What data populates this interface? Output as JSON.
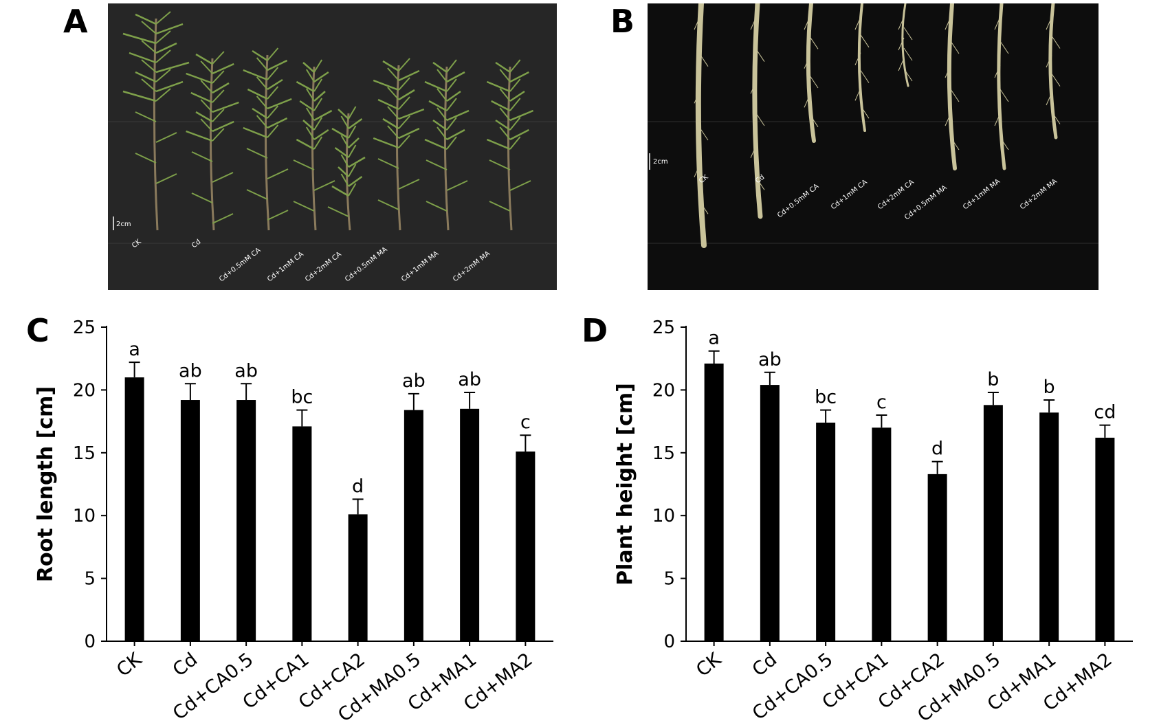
{
  "panels": {
    "a": {
      "letter": "A",
      "scale_bar": "2cm",
      "labels": [
        "CK",
        "Cd",
        "Cd+0.5mM CA",
        "Cd+1mM CA",
        "Cd+2mM CA",
        "Cd+0.5mM MA",
        "Cd+1mM MA",
        "Cd+2mM MA"
      ],
      "background": "#262626"
    },
    "b": {
      "letter": "B",
      "scale_bar": "2cm",
      "labels": [
        "CK",
        "Cd",
        "Cd+0.5mM CA",
        "Cd+1mM CA",
        "Cd+2mM CA",
        "Cd+0.5mM MA",
        "Cd+1mM MA",
        "Cd+2mM MA"
      ],
      "background": "#0d0d0d"
    },
    "c": {
      "letter": "C"
    },
    "d": {
      "letter": "D"
    }
  },
  "colors": {
    "bar": "#000000",
    "shoot": "#7ea04a",
    "stem": "#8a7a5c",
    "root": "#c9c39a"
  },
  "chart_data": [
    {
      "type": "bar",
      "categories": [
        "CK",
        "Cd",
        "Cd+CA0.5",
        "Cd+CA1",
        "Cd+CA2",
        "Cd+MA0.5",
        "Cd+MA1",
        "Cd+MA2"
      ],
      "values": [
        21.0,
        19.2,
        19.2,
        17.1,
        10.1,
        18.4,
        18.5,
        15.1
      ],
      "errors": [
        1.2,
        1.3,
        1.3,
        1.3,
        1.2,
        1.3,
        1.3,
        1.3
      ],
      "significance": [
        "a",
        "ab",
        "ab",
        "bc",
        "d",
        "ab",
        "ab",
        "c"
      ],
      "xlabel": "",
      "ylabel": "Root length [cm]",
      "ylim": [
        0,
        25
      ],
      "yticks": [
        0,
        5,
        10,
        15,
        20,
        25
      ],
      "grid": false
    },
    {
      "type": "bar",
      "categories": [
        "CK",
        "Cd",
        "Cd+CA0.5",
        "Cd+CA1",
        "Cd+CA2",
        "Cd+MA0.5",
        "Cd+MA1",
        "Cd+MA2"
      ],
      "values": [
        22.1,
        20.4,
        17.4,
        17.0,
        13.3,
        18.8,
        18.2,
        16.2
      ],
      "errors": [
        1.0,
        1.0,
        1.0,
        1.0,
        1.0,
        1.0,
        1.0,
        1.0
      ],
      "significance": [
        "a",
        "ab",
        "bc",
        "c",
        "d",
        "b",
        "b",
        "cd"
      ],
      "xlabel": "",
      "ylabel": "Plant height [cm]",
      "ylim": [
        0,
        25
      ],
      "yticks": [
        0,
        5,
        10,
        15,
        20,
        25
      ],
      "grid": false
    }
  ]
}
